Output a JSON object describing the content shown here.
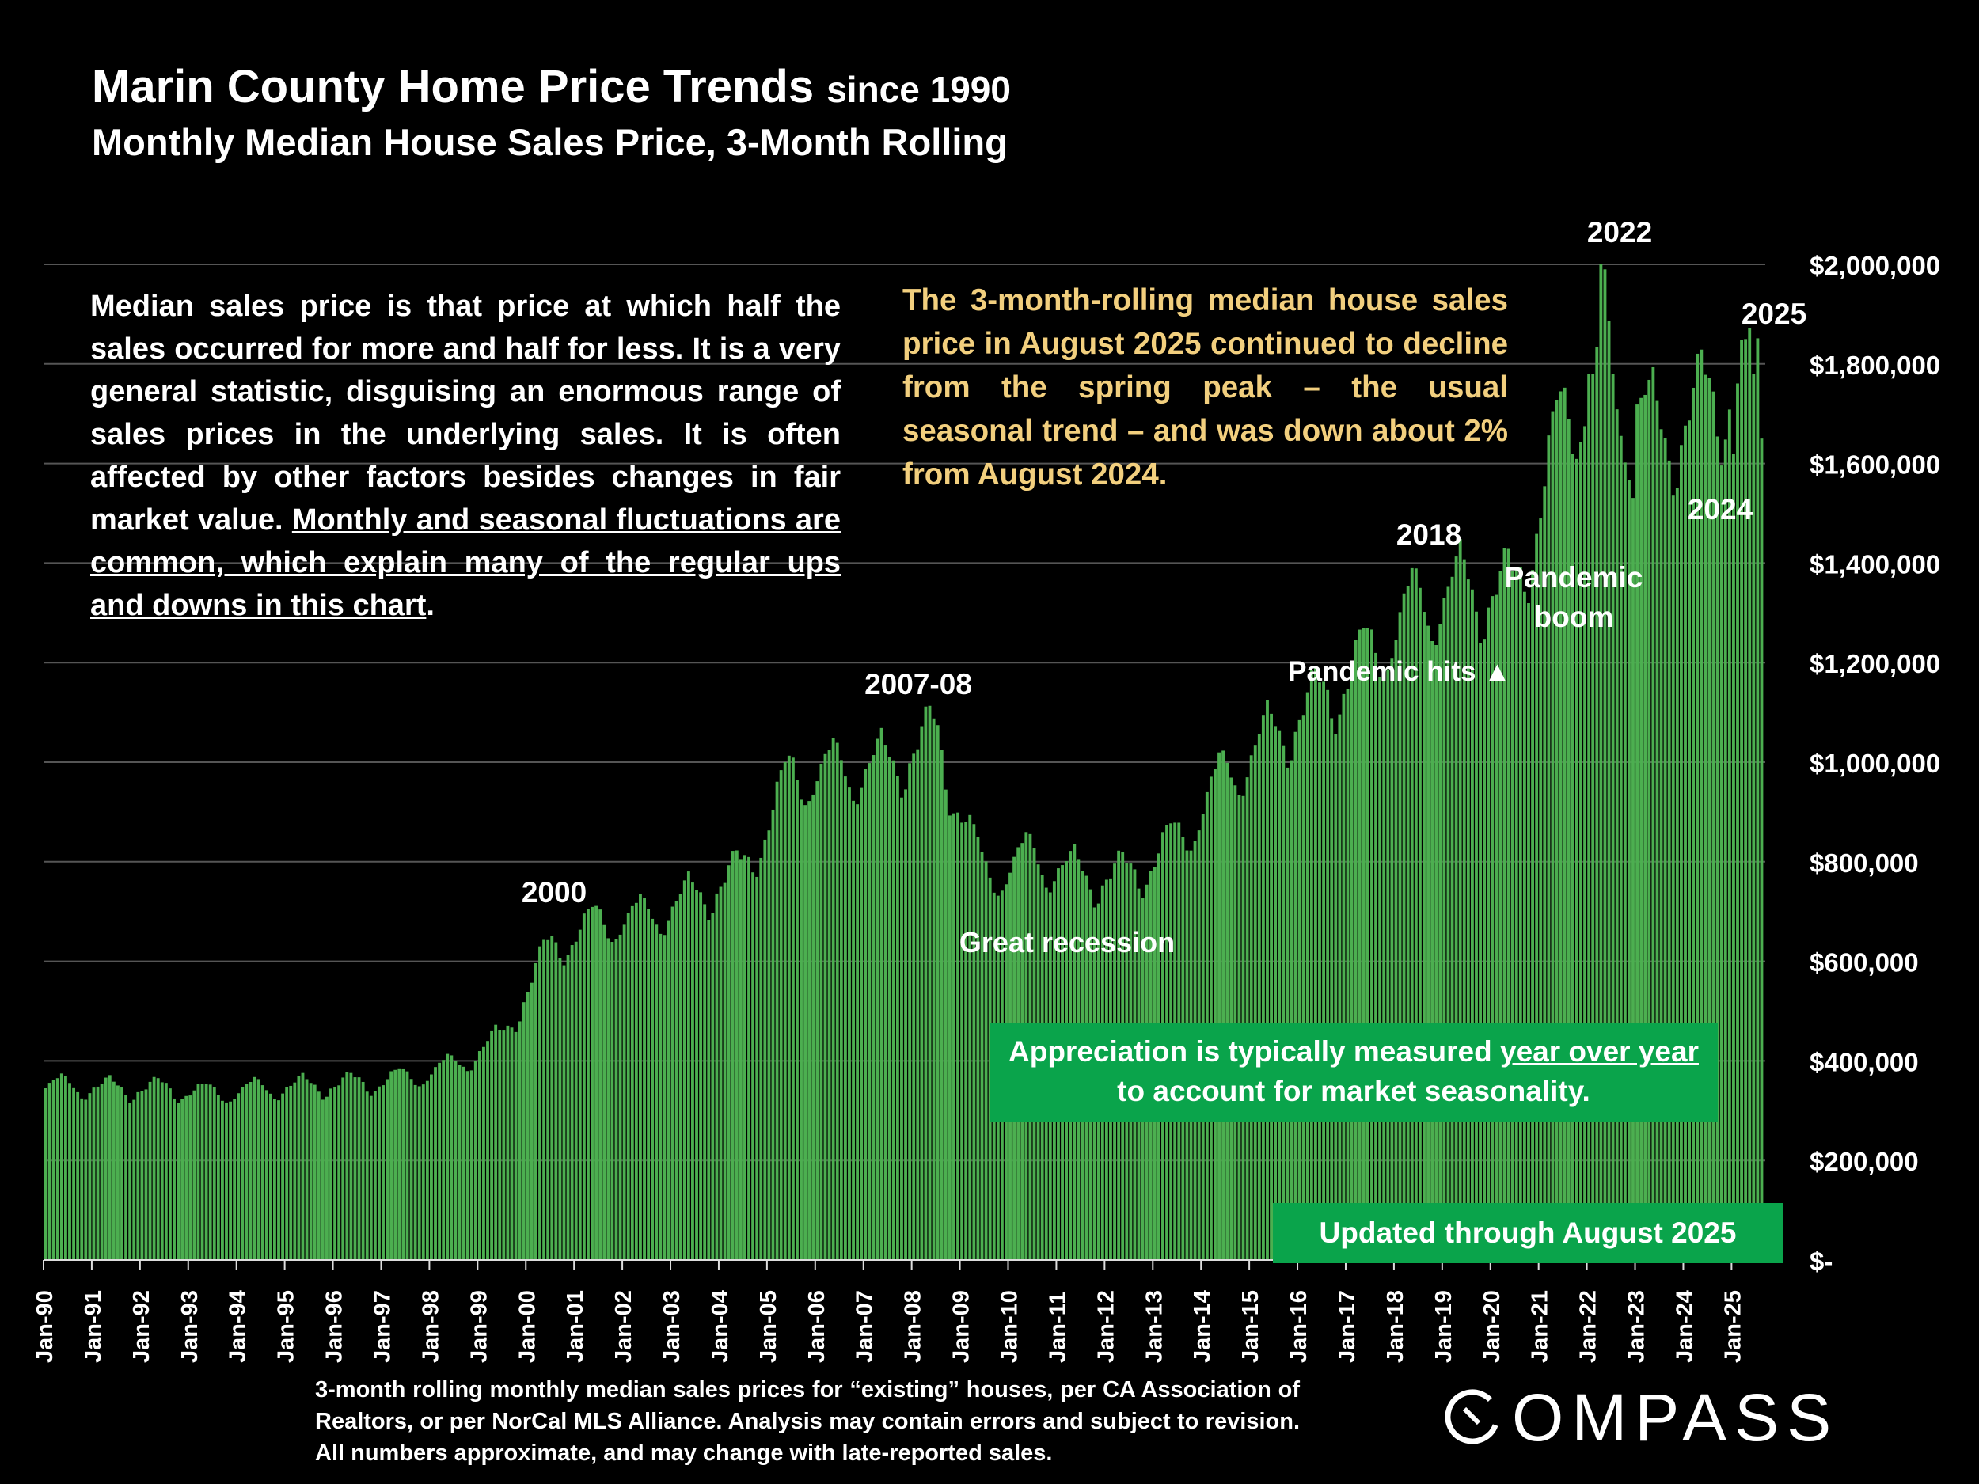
{
  "header": {
    "title_main": "Marin County Home Price Trends",
    "title_since": "since 1990",
    "subtitle": "Monthly Median House Sales Price, 3-Month Rolling"
  },
  "description": {
    "intro": "Median sales price is that price at which half the sales occurred for more and half for less. It is a very general statistic, disguising an enormous range of sales prices in the underlying sales. It is often affected by other factors besides changes in fair market value.",
    "underlined": "Monthly and seasonal fluctuations are common, which explain many of the regular ups and downs in this chart",
    "period": "."
  },
  "note": "The 3-month-rolling median house sales price in August 2025 continued to decline from the spring peak – the usual seasonal trend – and was down about 2% from August 2024.",
  "appreciation_box": {
    "line1_prefix": "Appreciation is typically measured",
    "line1_underlined": "year over year",
    "line2": "to account for market seasonality."
  },
  "updated_box": "Updated through August 2025",
  "footnote": "3-month rolling monthly median sales prices for “existing” houses, per CA Association of Realtors, or per NorCal MLS Alliance. Analysis may contain errors and subject to revision. All numbers approximate, and may change with late-reported sales.",
  "brand": {
    "name": "COMPASS"
  },
  "colors": {
    "background": "#000000",
    "bar": "#4caf50",
    "note_text": "#f2cf7e",
    "box_green": "#0aa44b",
    "grid": "#555555"
  },
  "chart_data": {
    "type": "bar",
    "title": "Marin County Home Price Trends since 1990",
    "subtitle": "Monthly Median House Sales Price, 3-Month Rolling",
    "xlabel": "",
    "ylabel": "",
    "ylim": [
      0,
      2000000
    ],
    "y_ticks": [
      0,
      200000,
      400000,
      600000,
      800000,
      1000000,
      1200000,
      1400000,
      1600000,
      1800000,
      2000000
    ],
    "y_tick_labels": [
      "$-",
      "$200,000",
      "$400,000",
      "$600,000",
      "$800,000",
      "$1,000,000",
      "$1,200,000",
      "$1,400,000",
      "$1,600,000",
      "$1,800,000",
      "$2,000,000"
    ],
    "x_tick_labels": [
      "Jan-90",
      "Jan-91",
      "Jan-92",
      "Jan-93",
      "Jan-94",
      "Jan-95",
      "Jan-96",
      "Jan-97",
      "Jan-98",
      "Jan-99",
      "Jan-00",
      "Jan-01",
      "Jan-02",
      "Jan-03",
      "Jan-04",
      "Jan-05",
      "Jan-06",
      "Jan-07",
      "Jan-08",
      "Jan-09",
      "Jan-10",
      "Jan-11",
      "Jan-12",
      "Jan-13",
      "Jan-14",
      "Jan-15",
      "Jan-16",
      "Jan-17",
      "Jan-18",
      "Jan-19",
      "Jan-20",
      "Jan-21",
      "Jan-22",
      "Jan-23",
      "Jan-24",
      "Jan-25"
    ],
    "start_month": "Jan-90",
    "end_month": "Aug-25",
    "series": [
      {
        "name": "3-month rolling median house sales price",
        "annual_anchors_mid": [
          345000,
          340000,
          340000,
          330000,
          340000,
          345000,
          350000,
          360000,
          385000,
          440000,
          620000,
          670000,
          680000,
          720000,
          770000,
          960000,
          970000,
          980000,
          1040000,
          760000,
          800000,
          760000,
          760000,
          830000,
          960000,
          1040000,
          1110000,
          1200000,
          1300000,
          1330000,
          1320000,
          1660000,
          1800000,
          1620000,
          1700000,
          1760000
        ],
        "seasonal_amplitude_fraction": [
          0.0,
          0.02,
          0.05,
          0.07,
          0.08,
          0.06,
          0.04,
          0.01,
          -0.03,
          -0.06,
          -0.05,
          -0.02
        ],
        "last_values": {
          "Jan-25": 1620000,
          "Apr-25": 1850000,
          "Jun-25": 1780000,
          "Aug-25": 1650000
        },
        "peak": {
          "month": "Apr-22",
          "value": 2000000
        }
      }
    ],
    "annotations": [
      {
        "text": "2000",
        "at": "Jul-00"
      },
      {
        "text": "2007-08",
        "at": "Oct-07"
      },
      {
        "text": "Great recession",
        "at": "Jan-11"
      },
      {
        "text": "2018",
        "at": "May-18"
      },
      {
        "text": "Pandemic hits",
        "at": "Mar-20",
        "marker": "▲"
      },
      {
        "text": "Pandemic",
        "at": "Jan-21"
      },
      {
        "text": "boom",
        "at": "Jan-21"
      },
      {
        "text": "2022",
        "at": "May-22"
      },
      {
        "text": "2024",
        "at": "Jun-24"
      },
      {
        "text": "2025",
        "at": "Jun-25"
      }
    ]
  }
}
